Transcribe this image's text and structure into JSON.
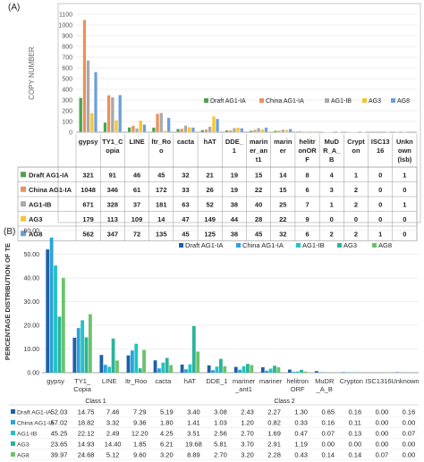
{
  "chart_data": [
    {
      "type": "bar",
      "panel_label": "(A)",
      "ylabel": "COPY NUMBER",
      "ylim": [
        0,
        1100
      ],
      "yticks": [
        0,
        100,
        200,
        300,
        400,
        500,
        600,
        700,
        800,
        900,
        1000,
        1100
      ],
      "grid": true,
      "legend": "inside-right",
      "categories": [
        "gypsy",
        "TY1_Copia",
        "LINE",
        "ltr_Roo",
        "cacta",
        "hAT",
        "DDE_1",
        "mariner_ant1",
        "mariner",
        "helitronORF",
        "MuDR_A_B",
        "Crypton",
        "ISC1316",
        "Unknown (lsb)"
      ],
      "category_lines": [
        [
          "gypsy"
        ],
        [
          "TY1_C",
          "opia"
        ],
        [
          "LINE"
        ],
        [
          "ltr_Ro",
          "o"
        ],
        [
          "cacta"
        ],
        [
          "hAT"
        ],
        [
          "DDE_",
          "1"
        ],
        [
          "marin",
          "er_an",
          "t1"
        ],
        [
          "marin",
          "er"
        ],
        [
          "helitr",
          "onOR",
          "F"
        ],
        [
          "MuD",
          "R_A_",
          "B"
        ],
        [
          "Crypt",
          "on"
        ],
        [
          "ISC13",
          "16"
        ],
        [
          "Unkn",
          "own",
          "(lsb)"
        ]
      ],
      "series": [
        {
          "name": "Draft AG1-IA",
          "color": "#4ea24e",
          "values": [
            321,
            91,
            46,
            45,
            32,
            21,
            19,
            15,
            14,
            8,
            4,
            1,
            0,
            1
          ]
        },
        {
          "name": "China AG1-IA",
          "color": "#e9925b",
          "values": [
            1048,
            346,
            61,
            172,
            33,
            26,
            19,
            22,
            15,
            6,
            3,
            2,
            0,
            0
          ]
        },
        {
          "name": "AG1-IB",
          "color": "#a9a9a9",
          "values": [
            671,
            328,
            37,
            181,
            63,
            52,
            38,
            40,
            25,
            7,
            1,
            2,
            0,
            1
          ]
        },
        {
          "name": "AG3",
          "color": "#f6c530",
          "values": [
            179,
            113,
            109,
            14,
            47,
            149,
            44,
            28,
            22,
            9,
            0,
            0,
            0,
            0
          ]
        },
        {
          "name": "AG8",
          "color": "#6d9fd8",
          "values": [
            562,
            347,
            72,
            135,
            45,
            125,
            38,
            45,
            32,
            6,
            2,
            2,
            1,
            0
          ]
        }
      ],
      "table": {
        "rows": [
          [
            "Draft AG1-IA",
            "321",
            "91",
            "46",
            "45",
            "32",
            "21",
            "19",
            "15",
            "14",
            "8",
            "4",
            "1",
            "0",
            "1"
          ],
          [
            "China AG1-IA",
            "1048",
            "346",
            "61",
            "172",
            "33",
            "26",
            "19",
            "22",
            "15",
            "6",
            "3",
            "2",
            "0",
            "0"
          ],
          [
            "AG1-IB",
            "671",
            "328",
            "37",
            "181",
            "63",
            "52",
            "38",
            "40",
            "25",
            "7",
            "1",
            "2",
            "0",
            "1"
          ],
          [
            "AG3",
            "179",
            "113",
            "109",
            "14",
            "47",
            "149",
            "44",
            "28",
            "22",
            "9",
            "0",
            "0",
            "0",
            "0"
          ],
          [
            "AG8",
            "562",
            "347",
            "72",
            "135",
            "45",
            "125",
            "38",
            "45",
            "32",
            "6",
            "2",
            "2",
            "1",
            "0"
          ]
        ]
      }
    },
    {
      "type": "bar",
      "panel_label": "(B)",
      "ylabel": "PERCENTAGE DISTRIBUTION OF TE",
      "ylim": [
        0,
        60
      ],
      "yticks": [
        0,
        10,
        20,
        30,
        40,
        50,
        60
      ],
      "ytick_labels": [
        "0.00",
        "10.00",
        "20.00",
        "30.00",
        "40.00",
        "50.00",
        "60.00"
      ],
      "grid": true,
      "legend": "top",
      "categories": [
        "gypsy",
        "TY1_Copia",
        "LINE",
        "ltr_Roo",
        "cacta",
        "hAT",
        "DDE_1",
        "mariner_ant1",
        "mariner",
        "helitron ORF",
        "MuDR_A_B",
        "Crypton",
        "ISC1316",
        "Unknown"
      ],
      "category_lines": [
        [
          "gypsy"
        ],
        [
          "TY1_",
          "Copia"
        ],
        [
          "LINE"
        ],
        [
          "ltr_Roo"
        ],
        [
          "cacta"
        ],
        [
          "hAT"
        ],
        [
          "DDE_1"
        ],
        [
          "mariner",
          "_ant1"
        ],
        [
          "mariner"
        ],
        [
          "helitron",
          "ORF"
        ],
        [
          "MuDR",
          "_A_B"
        ],
        [
          "Crypton"
        ],
        [
          "ISC1316"
        ],
        [
          "Unknown"
        ]
      ],
      "class_labels": [
        "Class 1",
        "Class 2"
      ],
      "series": [
        {
          "name": "Draft AG1-IA",
          "color": "#1f5fa8",
          "values": [
            52.03,
            14.75,
            7.46,
            7.29,
            5.19,
            3.4,
            3.08,
            2.43,
            2.27,
            1.3,
            0.65,
            0.16,
            0.0,
            0.16
          ]
        },
        {
          "name": "China AG1-IA",
          "color": "#2ba3d9",
          "values": [
            57.02,
            18.82,
            3.32,
            9.36,
            1.8,
            1.41,
            1.03,
            1.2,
            0.82,
            0.33,
            0.16,
            0.11,
            0.0,
            0.0
          ]
        },
        {
          "name": "AG1-IB",
          "color": "#20c4c4",
          "values": [
            45.25,
            22.12,
            2.49,
            12.2,
            4.25,
            3.51,
            2.56,
            2.7,
            1.69,
            0.47,
            0.07,
            0.13,
            0.0,
            0.07
          ]
        },
        {
          "name": "AG3",
          "color": "#2bb39a",
          "values": [
            23.65,
            14.93,
            14.4,
            1.85,
            6.21,
            19.68,
            5.81,
            3.7,
            2.91,
            1.19,
            0.0,
            0.0,
            0.0,
            0.0
          ]
        },
        {
          "name": "AG8",
          "color": "#6cc36a",
          "values": [
            39.97,
            24.68,
            5.12,
            9.6,
            3.2,
            8.89,
            2.7,
            3.2,
            2.28,
            0.43,
            0.14,
            0.14,
            0.07,
            0.0
          ]
        }
      ],
      "table": {
        "rows": [
          [
            "Draft AG1-IA",
            "52.03",
            "14.75",
            "7.46",
            "7.29",
            "5.19",
            "3.40",
            "3.08",
            "2.43",
            "2.27",
            "1.30",
            "0.65",
            "0.16",
            "0.00",
            "0.16"
          ],
          [
            "China AG1-IA",
            "57.02",
            "18.82",
            "3.32",
            "9.36",
            "1.80",
            "1.41",
            "1.03",
            "1.20",
            "0.82",
            "0.33",
            "0.16",
            "0.11",
            "0.00",
            "0.00"
          ],
          [
            "AG1-IB",
            "45.25",
            "22.12",
            "2.49",
            "12.20",
            "4.25",
            "3.51",
            "2.56",
            "2.70",
            "1.69",
            "0.47",
            "0.07",
            "0.13",
            "0.00",
            "0.07"
          ],
          [
            "AG3",
            "23.65",
            "14.93",
            "14.40",
            "1.85",
            "6.21",
            "19.68",
            "5.81",
            "3.70",
            "2.91",
            "1.19",
            "0.00",
            "0.00",
            "0.00",
            "0.00"
          ],
          [
            "AG8",
            "39.97",
            "24.68",
            "5.12",
            "9.60",
            "3.20",
            "8.89",
            "2.70",
            "3.20",
            "2.28",
            "0.43",
            "0.14",
            "0.14",
            "0.07",
            "0.00"
          ]
        ]
      }
    }
  ]
}
